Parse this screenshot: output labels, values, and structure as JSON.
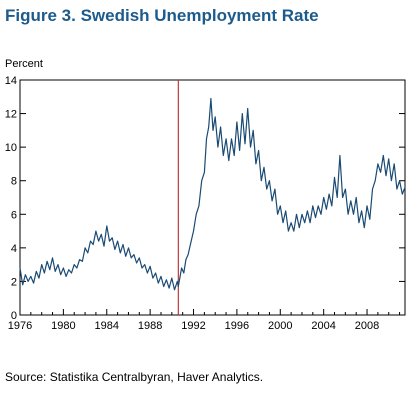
{
  "title": "Figure 3. Swedish Unemployment Rate",
  "source": "Source: Statistika Centralbyran, Haver Analytics.",
  "colors": {
    "title": "#1d5b8c",
    "series": "#1a4a73",
    "marker": "#c0393b",
    "axis": "#000000"
  },
  "chart_data": {
    "type": "line",
    "title": "Figure 3. Swedish Unemployment Rate",
    "ylabel": "Percent",
    "xlabel": "",
    "xlim": [
      1976,
      2011.5
    ],
    "ylim": [
      0,
      14
    ],
    "y_ticks": [
      0,
      2,
      4,
      6,
      8,
      10,
      12,
      14
    ],
    "x_ticks": [
      1976,
      1980,
      1984,
      1988,
      1992,
      1996,
      2000,
      2004,
      2008
    ],
    "vertical_marker_x": 1990.6,
    "grid": false,
    "legend": "none",
    "series": [
      {
        "name": "",
        "points": [
          [
            1976.0,
            2.8
          ],
          [
            1976.25,
            1.8
          ],
          [
            1976.5,
            2.4
          ],
          [
            1976.75,
            2.0
          ],
          [
            1977.0,
            2.3
          ],
          [
            1977.25,
            1.9
          ],
          [
            1977.5,
            2.6
          ],
          [
            1977.75,
            2.2
          ],
          [
            1978.0,
            3.0
          ],
          [
            1978.25,
            2.5
          ],
          [
            1978.5,
            3.2
          ],
          [
            1978.75,
            2.7
          ],
          [
            1979.0,
            3.4
          ],
          [
            1979.25,
            2.6
          ],
          [
            1979.5,
            3.0
          ],
          [
            1979.75,
            2.4
          ],
          [
            1980.0,
            2.8
          ],
          [
            1980.25,
            2.3
          ],
          [
            1980.5,
            2.7
          ],
          [
            1980.75,
            2.5
          ],
          [
            1981.0,
            3.0
          ],
          [
            1981.25,
            2.8
          ],
          [
            1981.5,
            3.3
          ],
          [
            1981.75,
            3.2
          ],
          [
            1982.0,
            4.0
          ],
          [
            1982.25,
            3.7
          ],
          [
            1982.5,
            4.4
          ],
          [
            1982.75,
            4.2
          ],
          [
            1983.0,
            5.0
          ],
          [
            1983.25,
            4.4
          ],
          [
            1983.5,
            4.8
          ],
          [
            1983.75,
            4.1
          ],
          [
            1984.0,
            5.3
          ],
          [
            1984.25,
            4.4
          ],
          [
            1984.5,
            4.6
          ],
          [
            1984.75,
            3.9
          ],
          [
            1985.0,
            4.4
          ],
          [
            1985.25,
            3.7
          ],
          [
            1985.5,
            4.2
          ],
          [
            1985.75,
            3.5
          ],
          [
            1986.0,
            4.0
          ],
          [
            1986.25,
            3.4
          ],
          [
            1986.5,
            3.6
          ],
          [
            1986.75,
            3.1
          ],
          [
            1987.0,
            3.4
          ],
          [
            1987.25,
            2.8
          ],
          [
            1987.5,
            3.0
          ],
          [
            1987.75,
            2.5
          ],
          [
            1988.0,
            2.9
          ],
          [
            1988.25,
            2.2
          ],
          [
            1988.5,
            2.5
          ],
          [
            1988.75,
            1.9
          ],
          [
            1989.0,
            2.3
          ],
          [
            1989.25,
            1.7
          ],
          [
            1989.5,
            2.1
          ],
          [
            1989.75,
            1.6
          ],
          [
            1990.0,
            2.2
          ],
          [
            1990.25,
            1.5
          ],
          [
            1990.5,
            2.0
          ],
          [
            1990.6,
            1.7
          ],
          [
            1990.9,
            2.8
          ],
          [
            1991.1,
            2.5
          ],
          [
            1991.3,
            3.3
          ],
          [
            1991.5,
            3.6
          ],
          [
            1991.75,
            4.3
          ],
          [
            1992.0,
            5.0
          ],
          [
            1992.25,
            6.0
          ],
          [
            1992.5,
            6.5
          ],
          [
            1992.75,
            8.0
          ],
          [
            1993.0,
            8.5
          ],
          [
            1993.2,
            10.5
          ],
          [
            1993.4,
            11.2
          ],
          [
            1993.6,
            12.9
          ],
          [
            1993.8,
            11.0
          ],
          [
            1994.0,
            11.8
          ],
          [
            1994.25,
            10.0
          ],
          [
            1994.5,
            11.2
          ],
          [
            1994.75,
            9.5
          ],
          [
            1995.0,
            10.5
          ],
          [
            1995.25,
            9.2
          ],
          [
            1995.5,
            10.5
          ],
          [
            1995.75,
            9.5
          ],
          [
            1996.0,
            11.5
          ],
          [
            1996.25,
            9.8
          ],
          [
            1996.5,
            12.0
          ],
          [
            1996.75,
            10.2
          ],
          [
            1997.0,
            12.3
          ],
          [
            1997.25,
            10.0
          ],
          [
            1997.5,
            11.0
          ],
          [
            1997.75,
            9.0
          ],
          [
            1998.0,
            9.8
          ],
          [
            1998.25,
            8.0
          ],
          [
            1998.5,
            8.8
          ],
          [
            1998.75,
            7.5
          ],
          [
            1999.0,
            8.0
          ],
          [
            1999.25,
            6.8
          ],
          [
            1999.5,
            7.5
          ],
          [
            1999.75,
            6.0
          ],
          [
            2000.0,
            6.5
          ],
          [
            2000.25,
            5.5
          ],
          [
            2000.5,
            6.2
          ],
          [
            2000.75,
            5.0
          ],
          [
            2001.0,
            5.5
          ],
          [
            2001.25,
            5.0
          ],
          [
            2001.5,
            6.0
          ],
          [
            2001.75,
            5.2
          ],
          [
            2002.0,
            6.0
          ],
          [
            2002.25,
            5.5
          ],
          [
            2002.5,
            6.2
          ],
          [
            2002.75,
            5.5
          ],
          [
            2003.0,
            6.5
          ],
          [
            2003.25,
            5.8
          ],
          [
            2003.5,
            6.5
          ],
          [
            2003.75,
            6.0
          ],
          [
            2004.0,
            7.0
          ],
          [
            2004.25,
            6.3
          ],
          [
            2004.5,
            7.2
          ],
          [
            2004.75,
            6.5
          ],
          [
            2005.0,
            8.2
          ],
          [
            2005.25,
            7.0
          ],
          [
            2005.5,
            9.5
          ],
          [
            2005.75,
            7.0
          ],
          [
            2006.0,
            7.5
          ],
          [
            2006.25,
            6.0
          ],
          [
            2006.5,
            6.8
          ],
          [
            2006.75,
            6.0
          ],
          [
            2007.0,
            7.0
          ],
          [
            2007.25,
            5.5
          ],
          [
            2007.5,
            6.2
          ],
          [
            2007.75,
            5.2
          ],
          [
            2008.0,
            6.5
          ],
          [
            2008.25,
            5.7
          ],
          [
            2008.5,
            7.5
          ],
          [
            2008.75,
            8.0
          ],
          [
            2009.0,
            9.0
          ],
          [
            2009.25,
            8.5
          ],
          [
            2009.5,
            9.5
          ],
          [
            2009.75,
            8.3
          ],
          [
            2010.0,
            9.3
          ],
          [
            2010.25,
            8.0
          ],
          [
            2010.5,
            9.0
          ],
          [
            2010.75,
            7.5
          ],
          [
            2011.0,
            8.0
          ],
          [
            2011.25,
            7.2
          ],
          [
            2011.5,
            7.6
          ]
        ]
      }
    ]
  }
}
